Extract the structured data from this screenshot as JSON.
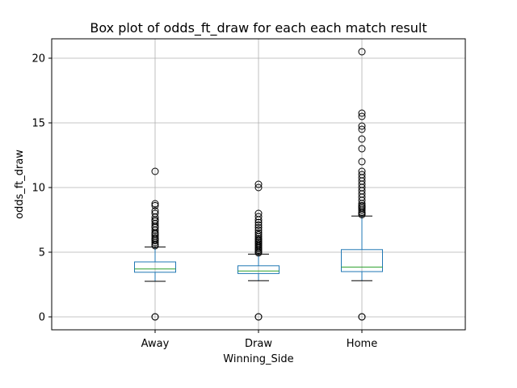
{
  "chart_data": {
    "type": "box",
    "title": "Box plot of odds_ft_draw for each each match result",
    "xlabel": "Winning_Side",
    "ylabel": "odds_ft_draw",
    "categories": [
      "Away",
      "Draw",
      "Home"
    ],
    "ylim": [
      -1.0,
      21.5
    ],
    "yticks": [
      0,
      5,
      10,
      15,
      20
    ],
    "grid": true,
    "boxes": [
      {
        "category": "Away",
        "whislo": 2.75,
        "q1": 3.45,
        "med": 3.7,
        "q3": 4.25,
        "whishi": 5.4,
        "fliers": [
          0,
          0,
          5.5,
          5.6,
          5.75,
          5.9,
          6.0,
          6.1,
          6.25,
          6.4,
          6.5,
          6.7,
          6.9,
          7.0,
          7.2,
          7.4,
          7.5,
          7.7,
          8.0,
          8.2,
          8.6,
          8.75,
          11.25
        ]
      },
      {
        "category": "Draw",
        "whislo": 2.8,
        "q1": 3.35,
        "med": 3.55,
        "q3": 3.95,
        "whishi": 4.85,
        "fliers": [
          0,
          0,
          4.95,
          5.05,
          5.15,
          5.25,
          5.35,
          5.45,
          5.55,
          5.65,
          5.75,
          5.85,
          5.95,
          6.05,
          6.2,
          6.35,
          6.5,
          6.7,
          6.9,
          7.1,
          7.3,
          7.5,
          7.75,
          8.0,
          10.0,
          10.25
        ]
      },
      {
        "category": "Home",
        "whislo": 2.8,
        "q1": 3.5,
        "med": 3.85,
        "q3": 5.2,
        "whishi": 7.8,
        "fliers": [
          0,
          0,
          7.9,
          8.0,
          8.1,
          8.25,
          8.4,
          8.5,
          8.6,
          8.75,
          9.0,
          9.25,
          9.5,
          9.75,
          10.0,
          10.25,
          10.5,
          10.75,
          11.0,
          11.25,
          12.0,
          13.0,
          13.75,
          14.5,
          14.75,
          15.5,
          15.75,
          20.5
        ]
      }
    ],
    "colors": {
      "box": "#1f77b4",
      "median": "#2ca02c",
      "whisker": "#000000",
      "flier": "#000000",
      "grid": "#b0b0b0",
      "axes": "#000000"
    }
  }
}
